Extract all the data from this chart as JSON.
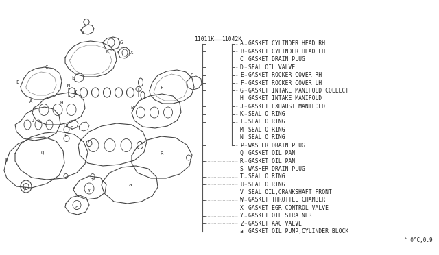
{
  "bg_color": "#ffffff",
  "part_numbers": [
    "11011K",
    "11042K"
  ],
  "footer_text": "^ 0°C,0.9",
  "legend_items": [
    [
      "A",
      "GASKET CYLINDER HEAD RH"
    ],
    [
      "B",
      "GASKET CYLINDER HEAD LH"
    ],
    [
      "C",
      "GASKET DRAIN PLUG"
    ],
    [
      "D",
      "SEAL OIL VALVE"
    ],
    [
      "E",
      "GASKET ROCKER COVER RH"
    ],
    [
      "F",
      "GASKET ROCKER COVER LH"
    ],
    [
      "G",
      "GASKET INTAKE MANIFOLD COLLECT"
    ],
    [
      "H",
      "GASKET INTAKE MANIFOLD"
    ],
    [
      "J",
      "GASKET EXHAUST MANIFOLD"
    ],
    [
      "K",
      "SEAL O RING"
    ],
    [
      "L",
      "SEAL O RING"
    ],
    [
      "M",
      "SEAL O RING"
    ],
    [
      "N",
      "SEAL O RING"
    ],
    [
      "P",
      "WASHER DRAIN PLUG"
    ],
    [
      "Q",
      "GASKET OIL PAN"
    ],
    [
      "R",
      "GASKET OIL PAN"
    ],
    [
      "S",
      "WASHER DRAIN PLUG"
    ],
    [
      "T",
      "SEAL O RING"
    ],
    [
      "U",
      "SEAL O RING"
    ],
    [
      "V",
      "SEAL OIL,CRANKSHAFT FRONT"
    ],
    [
      "W",
      "GASKET THROTTLE CHAMBER"
    ],
    [
      "X",
      "GASKET EGR CONTROL VALVE"
    ],
    [
      "Y",
      "GASKET OIL STRAINER"
    ],
    [
      "Z",
      "GASKET AAC VALVE"
    ],
    [
      "a",
      "GASKET OIL PUMP,CYLINDER BLOCK"
    ]
  ],
  "n_bracket1": 25,
  "n_bracket2": 14,
  "font_size": 5.8,
  "mono_font": "monospace",
  "line_color": "#555555",
  "text_color": "#222222",
  "diagram_scale": 1.0
}
